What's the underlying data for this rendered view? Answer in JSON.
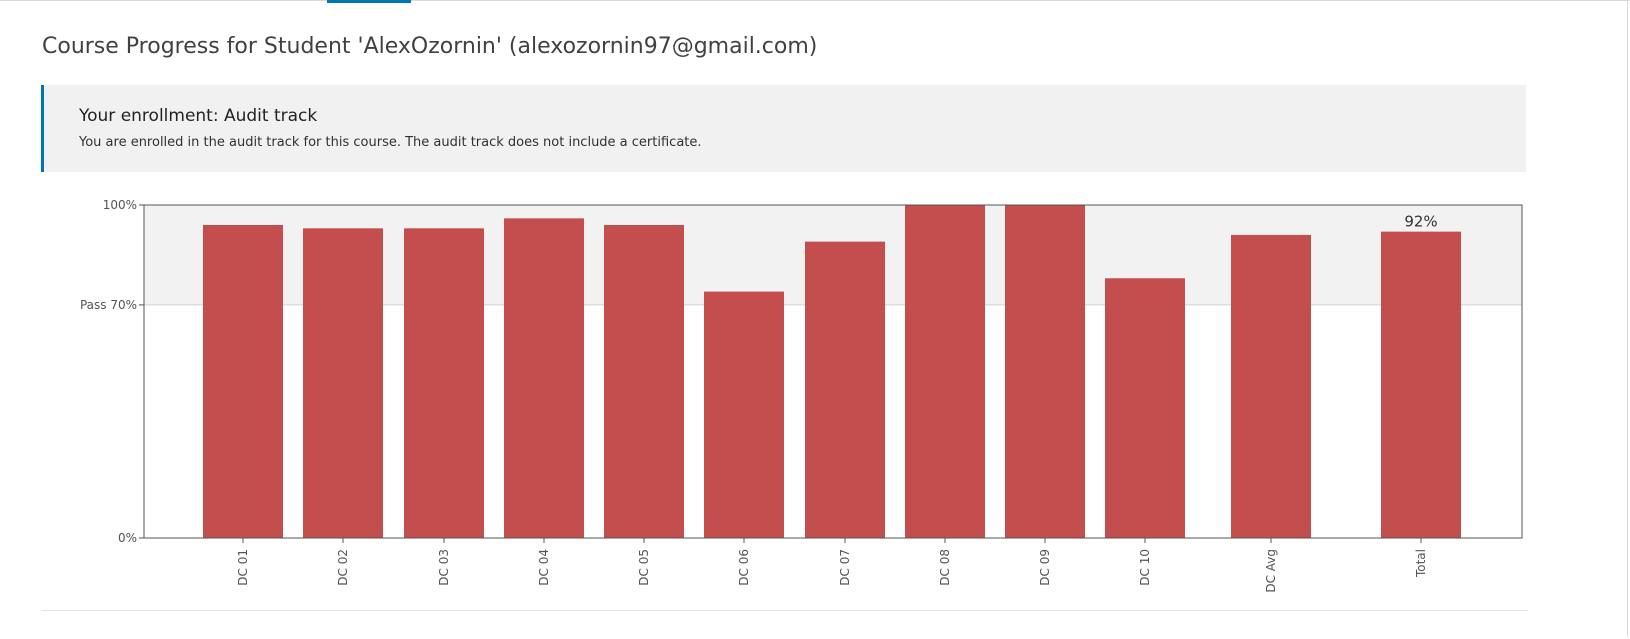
{
  "page": {
    "title": "Course Progress for Student 'AlexOzornin' (alexozornin97@gmail.com)"
  },
  "enrollment": {
    "title": "Your enrollment: Audit track",
    "message": "You are enrolled in the audit track for this course. The audit track does not include a certificate."
  },
  "chart_data": {
    "type": "bar",
    "categories": [
      "DC 01",
      "DC 02",
      "DC 03",
      "DC 04",
      "DC 05",
      "DC 06",
      "DC 07",
      "DC 08",
      "DC 09",
      "DC 10",
      "DC Avg",
      "Total"
    ],
    "values": [
      94,
      93,
      93,
      96,
      94,
      74,
      89,
      100,
      100,
      78,
      91,
      92
    ],
    "ylim": [
      0,
      100
    ],
    "y_ticks": [
      {
        "value": 100,
        "label": "100%"
      },
      {
        "value": 70,
        "label": "Pass 70%"
      },
      {
        "value": 0,
        "label": "0%"
      }
    ],
    "pass_threshold": 70,
    "data_labels": [
      {
        "category": "Total",
        "label": "92%"
      }
    ],
    "bar_color": "#c44e4e",
    "pass_band_color": "#f2f2f2",
    "grid": false,
    "legend": "none"
  }
}
